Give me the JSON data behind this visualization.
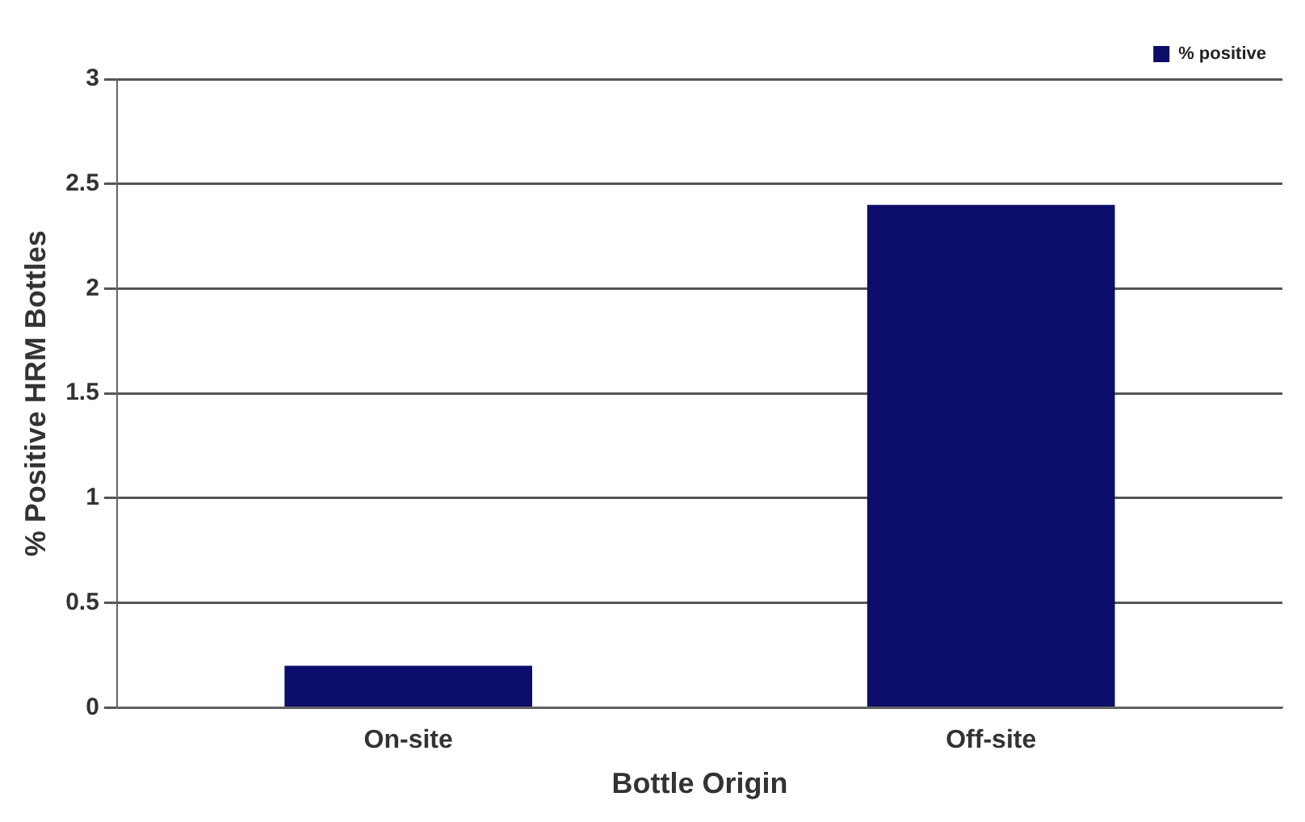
{
  "chart_data": {
    "type": "bar",
    "xlabel": "Bottle Origin",
    "ylabel": "% Positive HRM Bottles",
    "categories": [
      "On-site",
      "Off-site"
    ],
    "series": [
      {
        "name": "% positive",
        "color": "#0c0c6a",
        "values": [
          0.2,
          2.4
        ]
      }
    ],
    "ylim": [
      0,
      3
    ],
    "yticks": [
      0,
      0.5,
      1,
      1.5,
      2,
      2.5,
      3
    ],
    "grid": "y",
    "legend": "top right"
  }
}
